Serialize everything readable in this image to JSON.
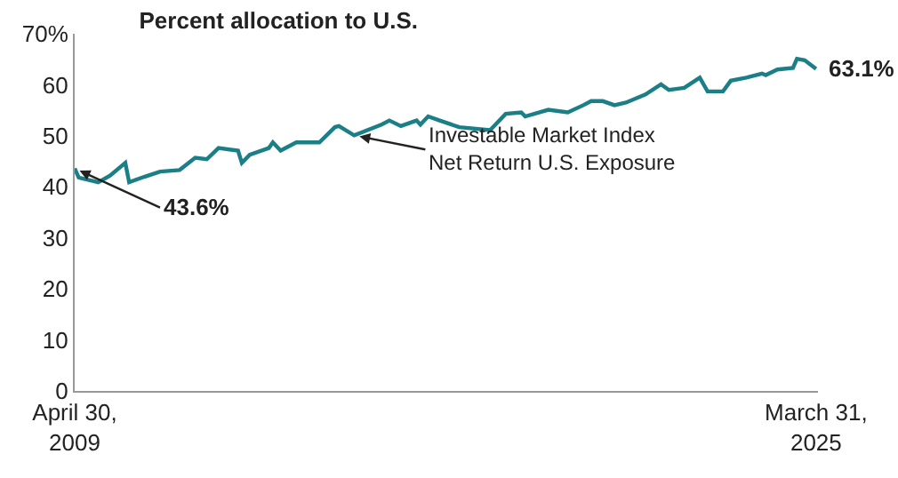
{
  "chart_data": {
    "type": "line",
    "title": "Percent allocation to U.S.",
    "x": [
      "2009-04-30",
      "2009-06",
      "2009-11",
      "2010-02",
      "2010-06",
      "2010-07",
      "2010-11",
      "2011-03",
      "2011-08",
      "2011-12",
      "2012-03",
      "2012-06",
      "2012-11",
      "2012-12",
      "2013-02",
      "2013-07",
      "2013-08",
      "2013-10",
      "2014-02",
      "2014-08",
      "2014-12",
      "2015-01",
      "2015-05",
      "2015-12",
      "2016-02",
      "2016-05",
      "2016-09",
      "2016-10",
      "2016-12",
      "2017-03",
      "2017-08",
      "2018-04",
      "2018-08",
      "2018-12",
      "2019-01",
      "2019-07",
      "2019-12",
      "2020-04",
      "2020-06",
      "2020-09",
      "2020-12",
      "2021-03",
      "2021-08",
      "2021-12",
      "2022-02",
      "2022-06",
      "2022-10",
      "2022-12",
      "2023-04",
      "2023-06",
      "2023-10",
      "2024-02",
      "2024-03",
      "2024-06",
      "2024-10",
      "2024-11",
      "2025-01",
      "2025-03-31"
    ],
    "series": [
      {
        "color": "#1a7f86",
        "values": [
          43.6,
          41.8,
          40.9,
          42.2,
          44.7,
          40.9,
          42.0,
          43.0,
          43.3,
          45.7,
          45.4,
          47.6,
          47.1,
          44.7,
          46.3,
          47.6,
          48.7,
          47.1,
          48.7,
          48.7,
          51.7,
          51.9,
          50.1,
          52.2,
          53.0,
          51.9,
          53.0,
          52.2,
          53.8,
          53.0,
          51.7,
          51.1,
          54.3,
          54.6,
          53.8,
          55.1,
          54.6,
          56.0,
          56.8,
          56.8,
          56.0,
          56.5,
          58.1,
          60.1,
          59.0,
          59.4,
          61.4,
          58.7,
          58.7,
          60.8,
          61.4,
          62.2,
          61.9,
          63.0,
          63.3,
          65.1,
          64.8,
          63.1
        ]
      }
    ],
    "xlim": [
      "2009-04-30",
      "2025-04-15"
    ],
    "xticks": [
      {
        "value": "2009-04-30",
        "label": "April 30,\n2009"
      },
      {
        "value": "2025-03-31",
        "label": "March 31,\n2025"
      }
    ],
    "ylim": [
      0,
      70
    ],
    "yticks": [
      0,
      10,
      20,
      30,
      40,
      50,
      60,
      {
        "value": 70,
        "label": "70%"
      }
    ],
    "marker": "none",
    "line_style": "solid",
    "annotations": [
      {
        "text": "43.6%",
        "x": "2009-04-30",
        "y": 43.6
      },
      {
        "text": "Investable Market Index Net Return U.S. Exposure",
        "x": "2015-05",
        "y": 50.1
      },
      {
        "text": "63.1%",
        "x": "2025-03-31",
        "y": 63.1
      }
    ]
  }
}
